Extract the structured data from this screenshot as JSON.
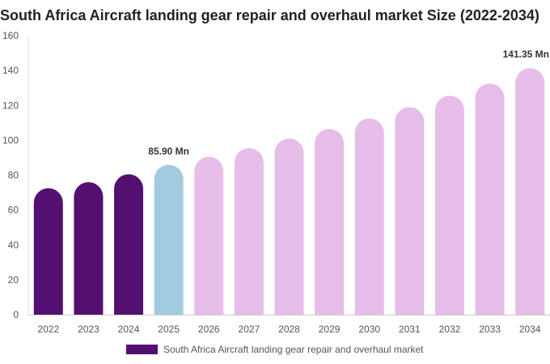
{
  "chart_data": {
    "type": "bar",
    "title": "South Africa Aircraft landing gear repair and overhaul market Size (2022-2034)",
    "categories": [
      "2022",
      "2023",
      "2024",
      "2025",
      "2026",
      "2027",
      "2028",
      "2029",
      "2030",
      "2031",
      "2032",
      "2033",
      "2034"
    ],
    "series": [
      {
        "name": "South Africa Aircraft landing gear repair and overhaul market",
        "values": [
          72.5,
          76.0,
          80.5,
          85.9,
          90.5,
          95.5,
          101.0,
          106.5,
          112.5,
          119.0,
          125.5,
          132.5,
          141.35
        ]
      }
    ],
    "data_labels": [
      {
        "category": "2025",
        "text": "85.90 Mn"
      },
      {
        "category": "2034",
        "text": "141.35 Mn"
      }
    ],
    "ylim": [
      0,
      160
    ],
    "yticks": [
      0,
      20,
      40,
      60,
      80,
      100,
      120,
      140,
      160
    ],
    "xlabel": "",
    "ylabel": "",
    "grid": false,
    "legend_position": "bottom",
    "colors": {
      "historical": "#541070",
      "current": "#a3cbe0",
      "forecast": "#e6bde9",
      "legend": "#541070"
    },
    "bar_color_groups": [
      "historical",
      "historical",
      "historical",
      "current",
      "forecast",
      "forecast",
      "forecast",
      "forecast",
      "forecast",
      "forecast",
      "forecast",
      "forecast",
      "forecast"
    ]
  }
}
